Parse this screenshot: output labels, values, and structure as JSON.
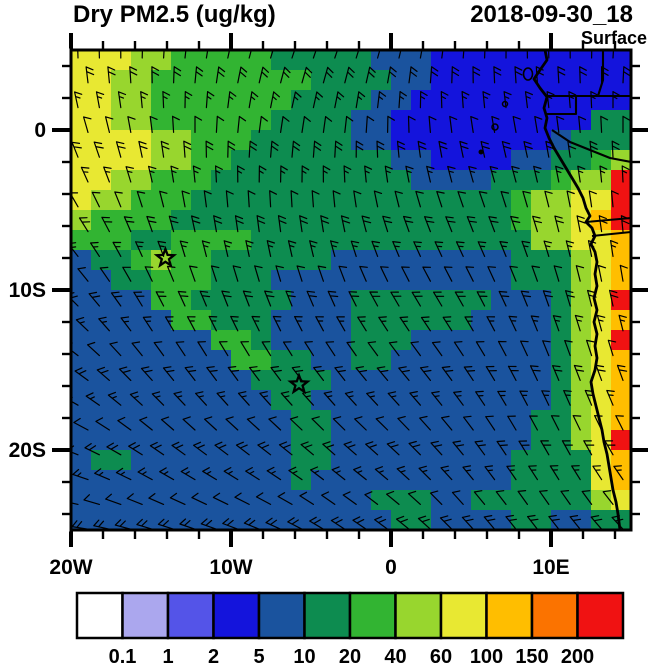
{
  "header": {
    "title": "Dry PM2.5 (ug/kg)",
    "datetime": "2018-09-30_18",
    "level": "Surface"
  },
  "chart_data": {
    "type": "heatmap",
    "subtype": "filled-contour map with wind barb overlay",
    "title": "Dry PM2.5 (ug/kg)",
    "datetime_label": "2018-09-30_18",
    "level_label": "Surface",
    "lon_range": [
      -20,
      15
    ],
    "lat_range": [
      -25,
      5
    ],
    "x_ticks": [
      {
        "lon": -20,
        "label": "20W"
      },
      {
        "lon": -10,
        "label": "10W"
      },
      {
        "lon": 0,
        "label": "0"
      },
      {
        "lon": 10,
        "label": "10E"
      }
    ],
    "y_ticks": [
      {
        "lat": 0,
        "label": "0"
      },
      {
        "lat": -10,
        "label": "10S"
      },
      {
        "lat": -20,
        "label": "20S"
      }
    ],
    "minor_tick_interval_deg": 2,
    "colorbar": {
      "levels": [
        "0.1",
        "1",
        "2",
        "5",
        "10",
        "20",
        "40",
        "60",
        "100",
        "150",
        "200"
      ],
      "colors": [
        "#FFFFFF",
        "#ABA7EE",
        "#5454E8",
        "#1414DC",
        "#1A539E",
        "#0D8C50",
        "#32B432",
        "#98D62E",
        "#E8E832",
        "#FFBE00",
        "#FB7300",
        "#F01212"
      ]
    },
    "wind_overlay": "wind barbs",
    "markers": [
      {
        "shape": "star",
        "lon": -14.1,
        "lat": -8.0
      },
      {
        "shape": "star",
        "lon": -5.75,
        "lat": -15.9
      }
    ],
    "field_grid": {
      "encoding": "run-length rows 'char:count'; 28 cols x 24 rows covering 20W-15E, 5N-25S; char = colorbar bin color",
      "cols": 28,
      "rows": 24,
      "char_colors": {
        "3": "#1414DC",
        "4": "#1A539E",
        "5": "#0D8C50",
        "6": "#32B432",
        "7": "#98D62E",
        "8": "#E8E832",
        "9": "#FFBE00",
        "A": "#FB7300",
        "B": "#F01212"
      },
      "rows_rle": [
        "8:3,7:2,6:5,5:5,4:3,3:10",
        "8:2,7:2,6:8,5:4,4:2,3:10",
        "8:2,7:2,6:7,5:4,4:2,3:11",
        "8:2,7:2,6:6,5:4,4:2,3:10,5:2",
        "8:4,7:2,6:3,5:5,4:2,3:8,4:1,5:3",
        "8:4,7:2,6:2,5:8,4:2,3:4,4:2,5:2,6:1,7:1",
        "8:2,7:2,6:3,5:10,4:4,5:3,6:1,7:2,B:1",
        "8:1,7:2,6:3,5:16,6:1,7:2,8:2,B:1",
        "7:1,6:4,5:17,6:1,7:2,8:1,9:1,B:1",
        "6:3,5:2,6:4,5:14,7:2,8:2,9:1",
        "4:1,5:2,6:1,7:1,6:2,5:6,4:9,5:3,7:1,8:1,9:1",
        "4:2,5:2,6:3,5:3,4:12,5:3,7:1,8:1,9:1",
        "4:4,6:2,5:5,4:3,5:7,4:3,5:1,7:1,8:1,B:1",
        "4:5,6:2,5:3,4:4,5:6,4:4,5:1,7:1,8:1,9:1",
        "4:7,6:2,5:1,4:4,5:3,4:7,5:1,7:1,8:1,B:1",
        "4:8,6:2,5:2,4:2,5:2,4:8,5:1,7:1,8:1,9:1",
        "4:9,5:4,4:11,5:1,7:1,8:1,9:1",
        "4:10,5:2,4:12,5:1,7:1,8:1,9:1",
        "4:11,5:2,4:10,5:2,7:1,8:1,9:1",
        "4:11,5:2,4:10,5:2,7:1,8:1,B:1",
        "4:1,5:2,4:8,5:2,4:9,5:4,8:1,9:1",
        "4:11,5:1,4:10,5:4,8:1,9:1",
        "4:15,5:3,4:2,5:6,7:1,8:1",
        "4:16,5:2,4:4,5:2,4:2,5:2"
      ]
    }
  }
}
